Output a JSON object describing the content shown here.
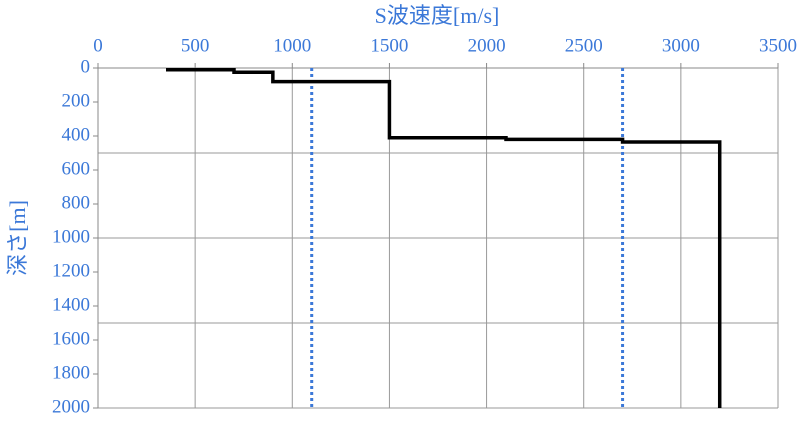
{
  "chart_data": {
    "type": "line",
    "x_label": "S波速度[m/s]",
    "y_label": "深さ[m]",
    "series": [
      {
        "color": "#000000",
        "x": [
          350,
          700,
          700,
          900,
          900,
          1500,
          1500,
          2100,
          2100,
          2700,
          2700,
          3200,
          3200
        ],
        "values": [
          10,
          10,
          25,
          25,
          80,
          80,
          410,
          410,
          420,
          420,
          435,
          435,
          2000
        ]
      }
    ],
    "vlines": [
      1100,
      2700
    ],
    "vline_color": "#3b78d8",
    "xlim": [
      0,
      3500
    ],
    "xticks": [
      0,
      500,
      1000,
      1500,
      2000,
      2500,
      3000,
      3500
    ],
    "ylim": [
      0,
      2000
    ],
    "yticks": [
      0,
      200,
      400,
      600,
      800,
      1000,
      1200,
      1400,
      1600,
      1800,
      2000
    ],
    "y_inverted": true,
    "ygrid": [
      500,
      1000,
      1500,
      2000
    ],
    "grid": true,
    "label_color": "#3b78d8"
  }
}
